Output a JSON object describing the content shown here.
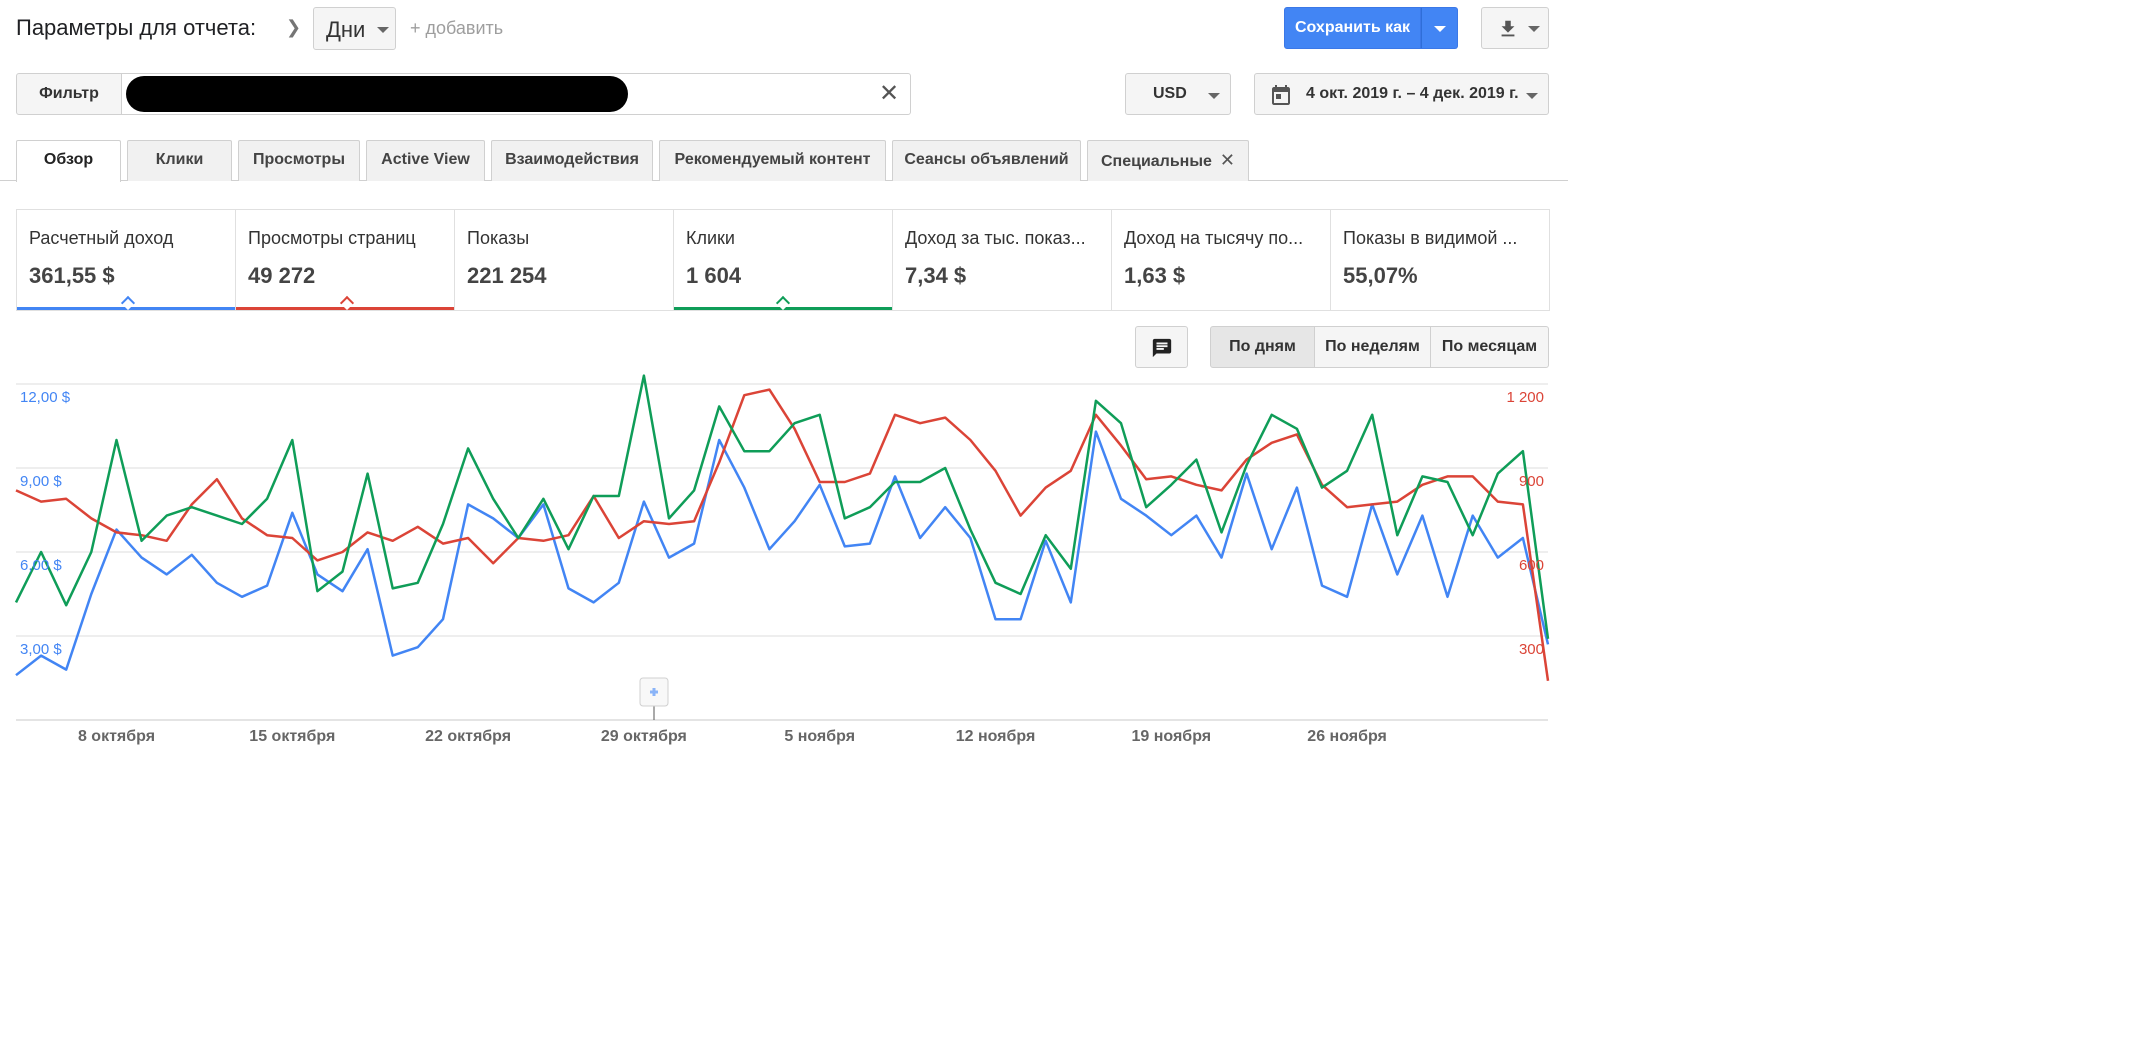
{
  "toolbar": {
    "params_label": "Параметры для отчета:",
    "dimension_value": "Дни",
    "add_label": "+ добавить",
    "save_label": "Сохранить как"
  },
  "filter": {
    "label": "Фильтр",
    "value": ""
  },
  "currency": "USD",
  "date_range": "4 окт. 2019 г. – 4 дек. 2019 г.",
  "tabs": [
    {
      "label": "Обзор",
      "active": true
    },
    {
      "label": "Клики"
    },
    {
      "label": "Просмотры"
    },
    {
      "label": "Active View"
    },
    {
      "label": "Взаимодействия"
    },
    {
      "label": "Рекомендуемый контент"
    },
    {
      "label": "Сеансы объявлений"
    },
    {
      "label": "Специальные",
      "closable": true
    }
  ],
  "cards": [
    {
      "label": "Расчетный доход",
      "value": "361,55 $",
      "color": "#4285f4"
    },
    {
      "label": "Просмотры страниц",
      "value": "49 272",
      "color": "#db4437"
    },
    {
      "label": "Показы",
      "value": "221 254"
    },
    {
      "label": "Клики",
      "value": "1 604",
      "color": "#0f9d58"
    },
    {
      "label": "Доход за тыс. показ...",
      "value": "7,34 $"
    },
    {
      "label": "Доход на тысячу по...",
      "value": "1,63 $"
    },
    {
      "label": "Показы в видимой ...",
      "value": "55,07%"
    }
  ],
  "granularity": {
    "days": "По дням",
    "weeks": "По неделям",
    "months": "По месяцам",
    "active": "days"
  },
  "colors": {
    "revenue": "#4285f4",
    "page_views": "#db4437",
    "clicks": "#0f9d58",
    "accent": "#4285f4"
  },
  "chart_data": {
    "type": "line",
    "x_tick_labels": [
      "8 октября",
      "15 октября",
      "22 октября",
      "29 октября",
      "5 ноября",
      "12 ноября",
      "19 ноября",
      "26 ноября"
    ],
    "x": [
      "2019-10-04",
      "2019-10-05",
      "2019-10-06",
      "2019-10-07",
      "2019-10-08",
      "2019-10-09",
      "2019-10-10",
      "2019-10-11",
      "2019-10-12",
      "2019-10-13",
      "2019-10-14",
      "2019-10-15",
      "2019-10-16",
      "2019-10-17",
      "2019-10-18",
      "2019-10-19",
      "2019-10-20",
      "2019-10-21",
      "2019-10-22",
      "2019-10-23",
      "2019-10-24",
      "2019-10-25",
      "2019-10-26",
      "2019-10-27",
      "2019-10-28",
      "2019-10-29",
      "2019-10-30",
      "2019-10-31",
      "2019-11-01",
      "2019-11-02",
      "2019-11-03",
      "2019-11-04",
      "2019-11-05",
      "2019-11-06",
      "2019-11-07",
      "2019-11-08",
      "2019-11-09",
      "2019-11-10",
      "2019-11-11",
      "2019-11-12",
      "2019-11-13",
      "2019-11-14",
      "2019-11-15",
      "2019-11-16",
      "2019-11-17",
      "2019-11-18",
      "2019-11-19",
      "2019-11-20",
      "2019-11-21",
      "2019-11-22",
      "2019-11-23",
      "2019-11-24",
      "2019-11-25",
      "2019-11-26",
      "2019-11-27",
      "2019-11-28",
      "2019-11-29",
      "2019-11-30",
      "2019-12-01",
      "2019-12-02",
      "2019-12-03",
      "2019-12-04"
    ],
    "y_left": {
      "ticks": [
        "3,00 $",
        "6,00 $",
        "9,00 $",
        "12,00 $"
      ],
      "range": [
        0,
        12
      ]
    },
    "y_right": {
      "ticks": [
        "300",
        "600",
        "900",
        "1 200"
      ],
      "range": [
        0,
        1200
      ]
    },
    "series": [
      {
        "name": "Расчетный доход",
        "axis": "left",
        "color": "#4285f4",
        "values": [
          1.6,
          2.3,
          1.8,
          4.5,
          6.8,
          5.8,
          5.2,
          5.9,
          4.9,
          4.4,
          4.8,
          7.4,
          5.2,
          4.6,
          6.1,
          2.3,
          2.6,
          3.6,
          7.7,
          7.2,
          6.5,
          7.7,
          4.7,
          4.2,
          4.9,
          7.8,
          5.8,
          6.3,
          10.0,
          8.3,
          6.1,
          7.1,
          8.4,
          6.2,
          6.3,
          8.7,
          6.5,
          7.6,
          6.5,
          3.6,
          3.6,
          6.4,
          4.2,
          10.3,
          7.9,
          7.3,
          6.6,
          7.3,
          5.8,
          8.8,
          6.1,
          8.3,
          4.8,
          4.4,
          7.7,
          5.2,
          7.3,
          4.4,
          7.3,
          5.8,
          6.5,
          2.7
        ]
      },
      {
        "name": "Просмотры страниц",
        "axis": "right",
        "color": "#db4437",
        "values": [
          820,
          780,
          790,
          720,
          670,
          660,
          640,
          770,
          860,
          720,
          660,
          650,
          570,
          600,
          670,
          640,
          690,
          630,
          650,
          560,
          650,
          640,
          660,
          800,
          650,
          710,
          700,
          710,
          920,
          1160,
          1180,
          1040,
          850,
          850,
          880,
          1090,
          1060,
          1080,
          1000,
          890,
          730,
          830,
          890,
          1090,
          980,
          860,
          870,
          840,
          820,
          930,
          990,
          1020,
          840,
          760,
          770,
          780,
          840,
          870,
          870,
          780,
          770,
          140
        ]
      },
      {
        "name": "Клики",
        "axis": "right",
        "color": "#0f9d58",
        "values": [
          420,
          600,
          410,
          600,
          1000,
          640,
          730,
          760,
          730,
          700,
          790,
          1000,
          460,
          530,
          880,
          470,
          490,
          700,
          970,
          790,
          650,
          790,
          610,
          800,
          800,
          1230,
          720,
          820,
          1120,
          960,
          960,
          1060,
          1090,
          720,
          760,
          850,
          850,
          900,
          680,
          490,
          450,
          660,
          540,
          1140,
          1060,
          760,
          840,
          930,
          670,
          910,
          1090,
          1040,
          830,
          890,
          1090,
          660,
          870,
          850,
          660,
          880,
          960,
          290
        ]
      }
    ]
  }
}
